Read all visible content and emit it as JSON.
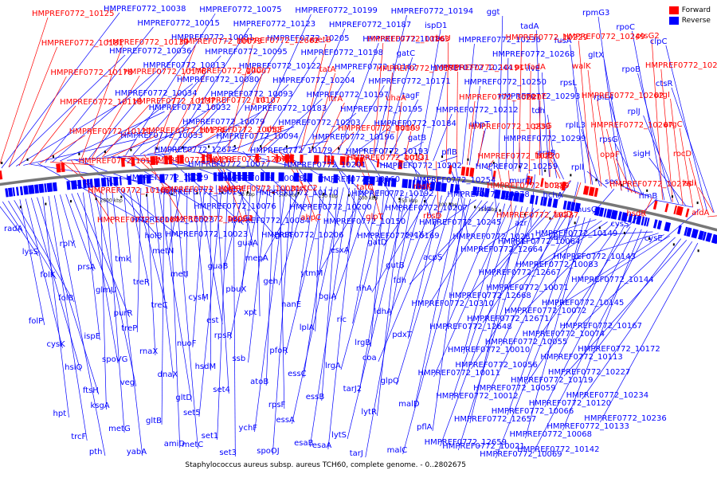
{
  "caption": "Staphylococcus aureus subsp. aureus TCH60, complete genome. - 0..2802675",
  "legend": [
    {
      "label": "Forward",
      "color": "#ff0000"
    },
    {
      "label": "Reverse",
      "color": "#0000ff"
    }
  ],
  "colors": {
    "forward": "#ff0000",
    "reverse": "#0000ff",
    "backbone": "#777777"
  },
  "ticks": [
    "2800 kbp",
    "50 kbp",
    "100 kbp",
    "150 kbp",
    "200 kbp",
    "250 kbp",
    "300 kbp",
    "350 kbp"
  ],
  "forward_labels": [
    "HMPREF0772_10125",
    "HMPREF0772_10181",
    "HMPREF0772_10178",
    "HMPREF0772_10118",
    "HMPREF0772_10121",
    "HMPREF0772_10117",
    "HMPREF0772_10165",
    "HMPREF0772_10164",
    "HMPREF0772_10139",
    "HMPREF0772_10176",
    "HMPREF0772_10137",
    "HMPREF0772_10174",
    "HMPREF0772_10116",
    "HMPREF0772_10057",
    "HMPREF0772_10054",
    "HMPREF0772_10073",
    "HMPREF0772_10067",
    "HMPREF0772_10107",
    "HMPREF0772_10053",
    "HMPREF0772_12673",
    "HMPREF0772_10031",
    "nupC2",
    "HMPREF0772_12662",
    "gltC",
    "int",
    "ahpF",
    "metE",
    "metC2",
    "ahpC",
    "metB",
    "tatA",
    "ltrA",
    "HMPREF0772_10109",
    "HMPREF0772_10131",
    "tatC",
    "glpT",
    "HMPREF0772_10163",
    "HMPREF0772_10173",
    "uhaA",
    "nanA",
    "brnQ",
    "rbsK",
    "rbsD",
    "rbsU",
    "HMPREF0772_10191",
    "HMPREF0772_10221",
    "HMPREF0772_10233",
    "HMPREF0772_10220",
    "HMPREF0772_10219",
    "HMPREF0772_10237",
    "HMPREF0772_10229",
    "pctfadA",
    "menE",
    "ptsG",
    "fadB",
    "hmpA",
    "fadD",
    "HMPREF0772_10249",
    "walK",
    "HMPREF0772_10262",
    "HMPREF0772_10267",
    "oppF",
    "HMPREF0772_10276",
    "hsdR",
    "ptsG2",
    "HMPREF0772_10285",
    "argI",
    "argC",
    "rocD",
    "isdI",
    "aldA"
  ],
  "reverse_labels": [
    "HMPREF0772_10038",
    "HMPREF0772_10036",
    "HMPREF0772_10034",
    "HMPREF0772_10033",
    "HMPREF0772_10029",
    "HMPREF0772_10028",
    "HMPREF0772_10015",
    "HMPREF0772_10013",
    "HMPREF0772_10032",
    "HMPREF0772_12672",
    "HMPREF0772_10014",
    "HMPREF0772_10023",
    "HMPREF0772_10081",
    "HMPREF0772_10080",
    "HMPREF0772_10079",
    "HMPREF0772_10077",
    "HMPREF0772_10076",
    "HMPREF0772_10075",
    "HMPREF0772_10095",
    "HMPREF0772_10093",
    "HMPREF0772_10094",
    "HMPREF0772_10078",
    "HMPREF0772_10084",
    "HMPREF0772_10123",
    "HMPREF0772_10122",
    "HMPREF0772_10183",
    "HMPREF0772_10179",
    "HMPREF0772_10170",
    "HMPREF0772_10206",
    "HMPREF0772_10205",
    "HMPREF0772_10204",
    "HMPREF0772_10203",
    "HMPREF0772_10201",
    "HMPREF0772_10200",
    "HMPREF0772_10199",
    "HMPREF0772_10198",
    "HMPREF0772_10197",
    "HMPREF0772_10196",
    "HMPREF0772_10160",
    "HMPREF0772_10150",
    "HMPREF0772_10187",
    "HMPREF0772_10162",
    "HMPREF0772_10195",
    "HMPREF0772_10193",
    "HMPREF0772_10192",
    "HMPREF0772_10169",
    "HMPREF0772_10186",
    "HMPREF0772_10171",
    "HMPREF0772_10184",
    "HMPREF0772_10202",
    "HMPREF0772_10207",
    "HMPREF0772_10194",
    "gatC",
    "tagF",
    "gatB",
    "HMPREF0772_10254",
    "HMPREF0772_10245",
    "ispD1",
    "HMPREF0772_10244",
    "HMPREF0772_10212",
    "pflB",
    "HMPREF0772_10278",
    "HMPREF0772_10281",
    "HMPREF0772_10236",
    "HMPREF0772_10250",
    "uhpT",
    "HMPREF0772_10259",
    "rlp",
    "ggt",
    "HMPREF0772_10268",
    "HMPREF0772_10293",
    "HMPREF0772_10299",
    "murQ",
    "azr",
    "tadA",
    "ilvE",
    "tdh",
    "araB",
    "hchA",
    "kbl",
    "fusA",
    "rpsL",
    "rplL3",
    "rpll",
    "nusG",
    "rpmG3",
    "gltX",
    "rplL4",
    "rpsG",
    "sec",
    "cysS",
    "rpoC",
    "rpoB",
    "rplJ",
    "sigH",
    "rlmB",
    "cysE",
    "clpC",
    "ctsR",
    "radA",
    "lysS",
    "folK",
    "folB",
    "folP",
    "cysK",
    "hslO",
    "ftsH",
    "hpt",
    "trcF",
    "pth",
    "rplY",
    "prsA",
    "glmU",
    "purR",
    "ispE",
    "spoVG",
    "veg",
    "ksgA",
    "metG",
    "yabA",
    "holB",
    "tmk",
    "treR",
    "treC",
    "treP",
    "rnaX",
    "dnaX",
    "gltD",
    "gltB",
    "amiD",
    "metC",
    "metN",
    "metI",
    "cysM",
    "est",
    "nuoF",
    "hsdM",
    "set4",
    "set5",
    "set1",
    "set3",
    "guaA",
    "guaB",
    "pbuX",
    "xpt",
    "rpsR",
    "ssb",
    "atoB",
    "rpsF",
    "ychF",
    "spoOJ",
    "gloA",
    "mepA",
    "geh",
    "nanE",
    "lplA",
    "pfoR",
    "essC",
    "essB",
    "essA",
    "esaB",
    "esaA",
    "esxA",
    "ytmM",
    "bglA",
    "ric",
    "lrgB",
    "lrgA",
    "tarJ2",
    "lytR",
    "lytS",
    "tarJ",
    "gatD",
    "gutB",
    "rihA",
    "ldhA",
    "pdxT",
    "coa",
    "glpQ",
    "malD",
    "pflA",
    "malC",
    "sacX",
    "acpS",
    "fdh",
    "HMPREF0772_10310",
    "HMPREF0772_12648",
    "HMPREF0772_10010",
    "HMPREF0772_10011",
    "HMPREF0772_10012",
    "HMPREF0772_12657",
    "HMPREF0772_12659",
    "HMPREF0772_10021",
    "HMPREF0772_12664",
    "HMPREF0772_12667",
    "HMPREF0772_12668",
    "HMPREF0772_12671",
    "HMPREF0772_10055",
    "HMPREF0772_10056",
    "HMPREF0772_10059",
    "HMPREF0772_10066",
    "HMPREF0772_10068",
    "HMPREF0772_10069",
    "HMPREF0772_10064",
    "HMPREF0772_10083",
    "HMPREF0772_10071",
    "HMPREF0772_10072",
    "HMPREF0772_10074",
    "HMPREF0772_10113",
    "HMPREF0772_10119",
    "HMPREF0772_10120",
    "HMPREF0772_10133",
    "HMPREF0772_10142",
    "HMPREF0772_10149",
    "HMPREF0772_10143",
    "HMPREF0772_10144",
    "HMPREF0772_10145",
    "HMPREF0772_10167",
    "HMPREF0772_10172",
    "HMPREF0772_10227",
    "HMPREF0772_10234",
    "HMPREF0772_10236"
  ]
}
